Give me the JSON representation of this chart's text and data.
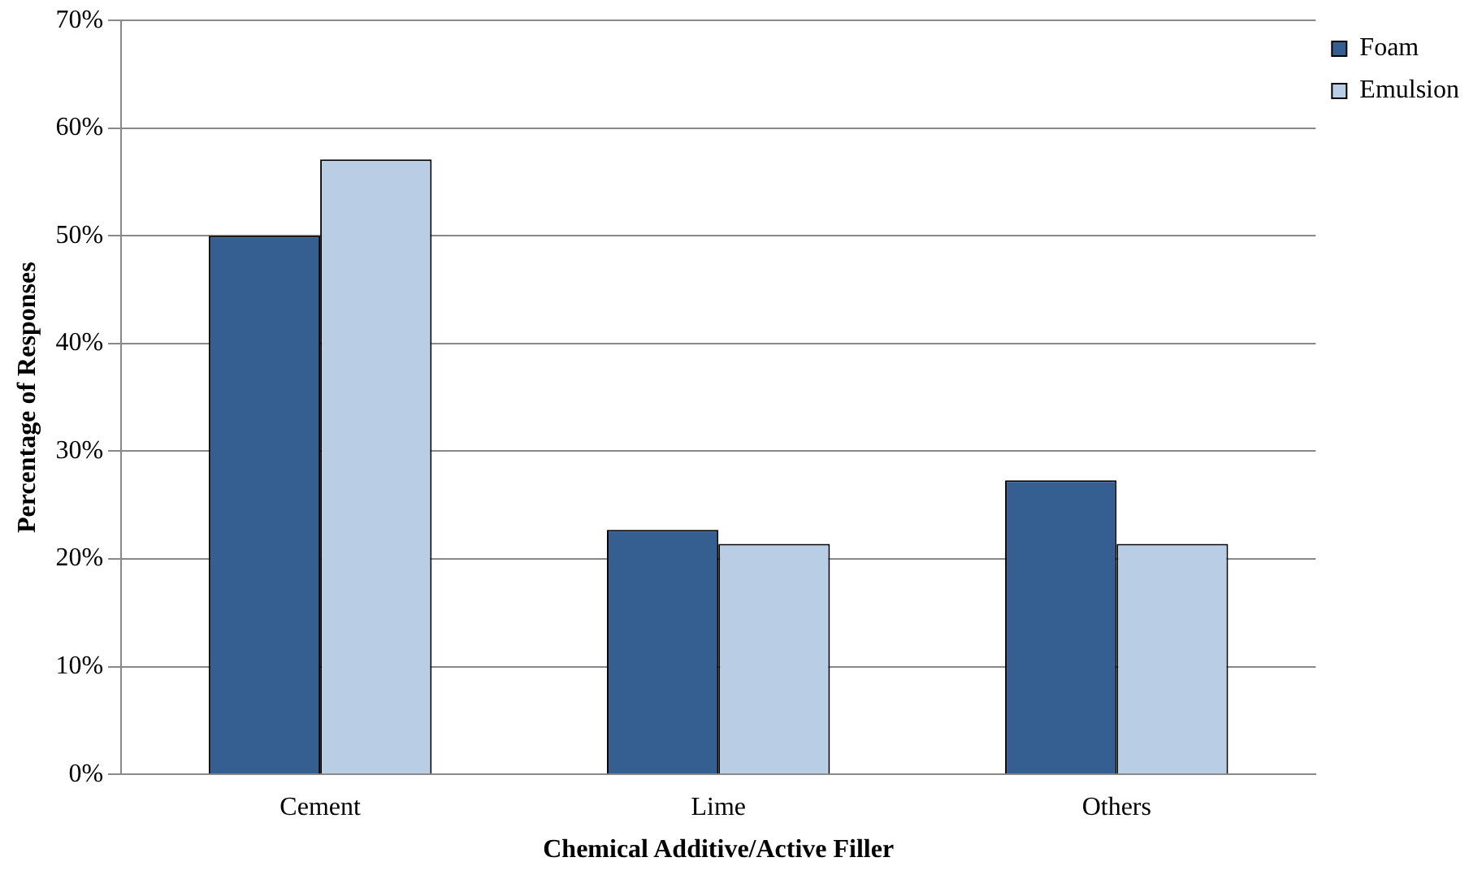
{
  "chart_data": {
    "type": "bar",
    "xlabel": "Chemical Additive/Active Filler",
    "ylabel": "Percentage of Responses",
    "categories": [
      "Cement",
      "Lime",
      "Others"
    ],
    "series": [
      {
        "name": "Foam",
        "color": "#355f91",
        "values": [
          50,
          22.7,
          27.3
        ]
      },
      {
        "name": "Emulsion",
        "color": "#b9cde5",
        "values": [
          57.1,
          21.4,
          21.4
        ]
      }
    ],
    "ylim": [
      0,
      70
    ],
    "yticks": [
      {
        "value": 0,
        "label": "0%"
      },
      {
        "value": 10,
        "label": "10%"
      },
      {
        "value": 20,
        "label": "20%"
      },
      {
        "value": 30,
        "label": "30%"
      },
      {
        "value": 40,
        "label": "40%"
      },
      {
        "value": 50,
        "label": "50%"
      },
      {
        "value": 60,
        "label": "60%"
      },
      {
        "value": 70,
        "label": "70%"
      }
    ],
    "grid": "y",
    "legend": "top right"
  }
}
